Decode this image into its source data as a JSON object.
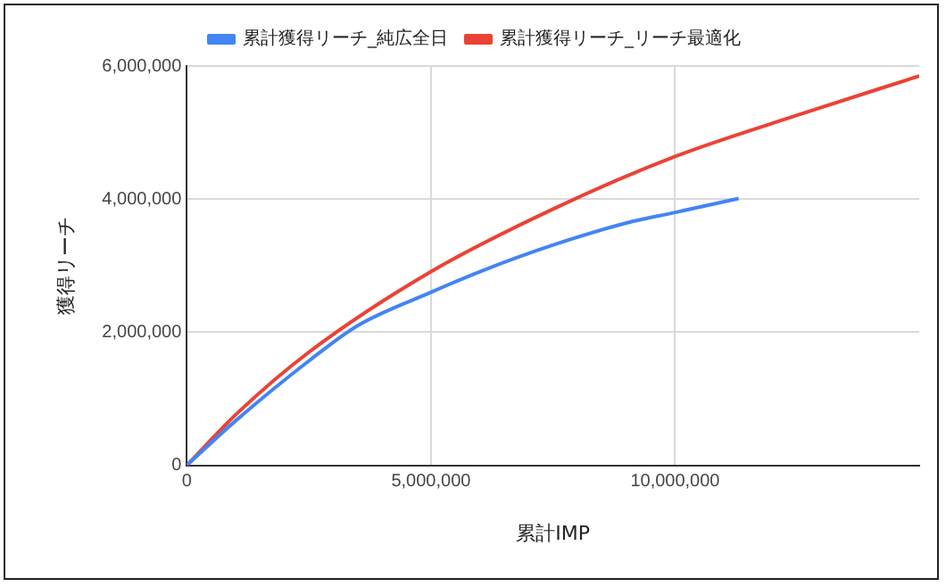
{
  "chart_data": {
    "type": "line",
    "xlabel": "累計IMP",
    "ylabel": "獲得リーチ",
    "legend": "top",
    "grid": true,
    "marker": "none",
    "xlim": [
      0,
      15000000
    ],
    "xticks": [
      0,
      {
        "value": 5000000,
        "label": "5,000,000"
      },
      {
        "value": 10000000,
        "label": "10,000,000"
      }
    ],
    "ylim": [
      0,
      6000000
    ],
    "yticks": [
      0,
      {
        "value": 2000000,
        "label": "2,000,000"
      },
      {
        "value": 4000000,
        "label": "4,000,000"
      },
      {
        "value": 6000000,
        "label": "6,000,000"
      }
    ],
    "series": [
      {
        "name": "累計獲得リーチ_純広全日",
        "color": "#4285f4",
        "x": [
          0,
          1000000,
          2500000,
          3500000,
          5000000,
          6000000,
          7500000,
          9000000,
          10000000,
          11300000
        ],
        "values": [
          0,
          670000,
          1570000,
          2100000,
          2600000,
          2910000,
          3310000,
          3640000,
          3800000,
          4010000
        ]
      },
      {
        "name": "累計獲得リーチ_リーチ最適化",
        "color": "#ea4335",
        "x": [
          0,
          1000000,
          2500000,
          5000000,
          7500000,
          10000000,
          12500000,
          15000000
        ],
        "values": [
          0,
          760000,
          1700000,
          2910000,
          3850000,
          4640000,
          5260000,
          5850000
        ]
      }
    ]
  }
}
